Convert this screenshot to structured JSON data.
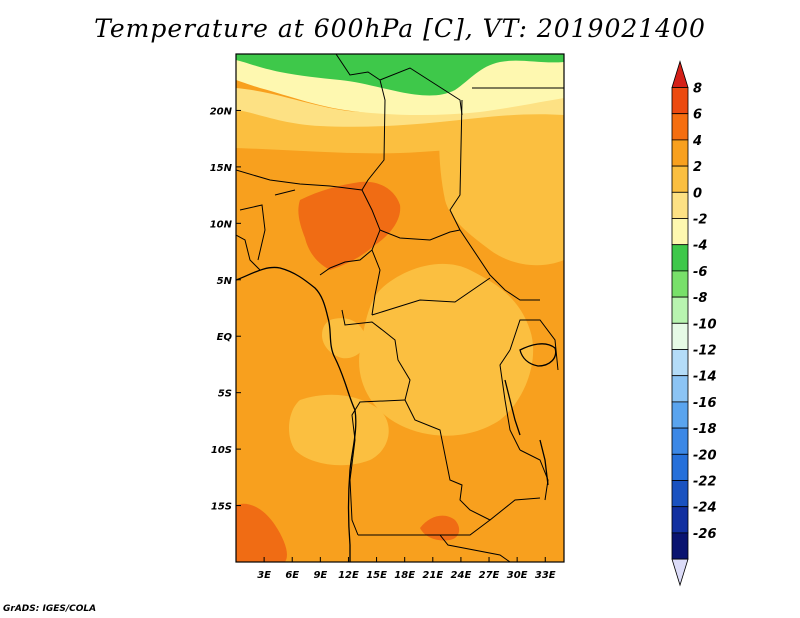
{
  "title": "Temperature at 600hPa [C], VT: 2019021400",
  "credit": "GrADS: IGES/COLA",
  "map": {
    "lon_range": [
      0,
      35
    ],
    "lat_range": [
      -20,
      25
    ],
    "x_ticks": [
      {
        "value": 3,
        "label": "3E"
      },
      {
        "value": 6,
        "label": "6E"
      },
      {
        "value": 9,
        "label": "9E"
      },
      {
        "value": 12,
        "label": "12E"
      },
      {
        "value": 15,
        "label": "15E"
      },
      {
        "value": 18,
        "label": "18E"
      },
      {
        "value": 21,
        "label": "21E"
      },
      {
        "value": 24,
        "label": "24E"
      },
      {
        "value": 27,
        "label": "27E"
      },
      {
        "value": 30,
        "label": "30E"
      },
      {
        "value": 33,
        "label": "33E"
      }
    ],
    "y_ticks": [
      {
        "value": 20,
        "label": "20N"
      },
      {
        "value": 15,
        "label": "15N"
      },
      {
        "value": 10,
        "label": "10N"
      },
      {
        "value": 5,
        "label": "5N"
      },
      {
        "value": 0,
        "label": "EQ"
      },
      {
        "value": -5,
        "label": "5S"
      },
      {
        "value": -10,
        "label": "10S"
      },
      {
        "value": -15,
        "label": "15S"
      }
    ],
    "field_colors": {
      "t_m4_m2": "#fef8b0",
      "t_m2_0": "#fde184",
      "t_0_2": "#fbbf40",
      "t_2_4": "#f8a01e",
      "t_4_6": "#f06c14",
      "t_m6_m4": "#3ec84a"
    }
  },
  "legend": {
    "levels": [
      "8",
      "6",
      "4",
      "2",
      "0",
      "-2",
      "-4",
      "-6",
      "-8",
      "-10",
      "-12",
      "-14",
      "-16",
      "-18",
      "-20",
      "-22",
      "-24",
      "-26"
    ],
    "colors": [
      "#d42018",
      "#ec4a10",
      "#f56e10",
      "#f8a01e",
      "#fbbf40",
      "#fde184",
      "#fef8b0",
      "#3ec84a",
      "#78e06a",
      "#b8f4b0",
      "#e6fae6",
      "#b4dcf8",
      "#8cc4f4",
      "#5aa4ee",
      "#3c88e6",
      "#2670da",
      "#1a52c0",
      "#1230a0",
      "#0a1470",
      "#dcdcf8"
    ]
  }
}
